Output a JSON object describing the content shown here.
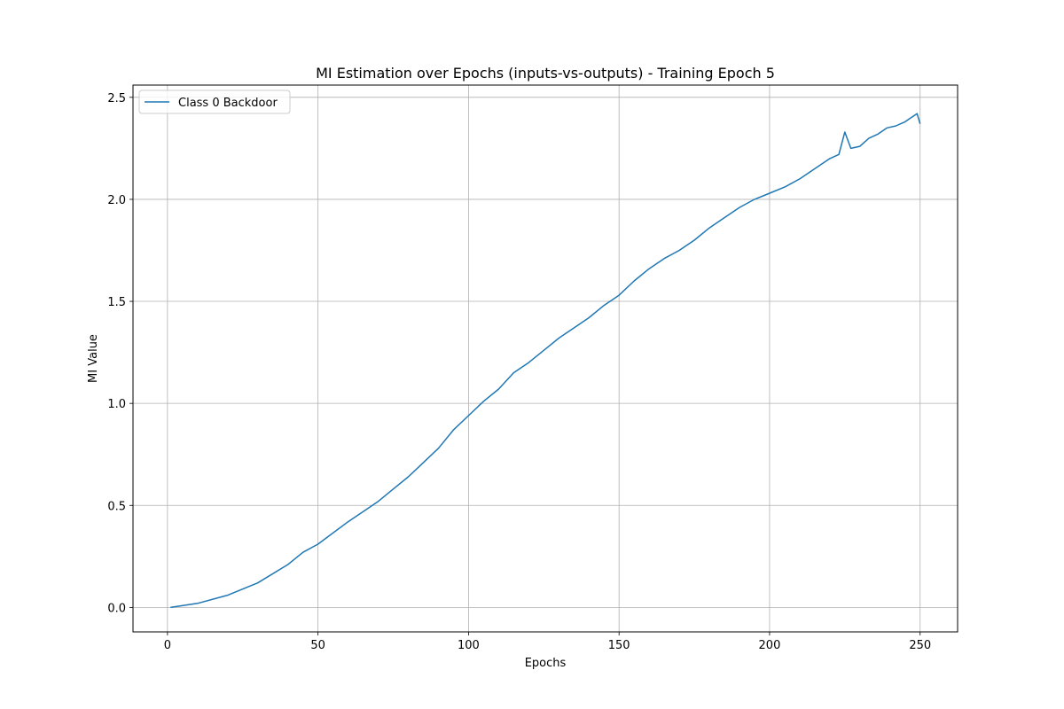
{
  "chart_data": {
    "type": "line",
    "title": "MI Estimation over Epochs (inputs-vs-outputs) - Training Epoch 5",
    "xlabel": "Epochs",
    "ylabel": "MI Value",
    "xlim": [
      -11.45,
      262.45
    ],
    "ylim": [
      -0.12,
      2.56
    ],
    "xticks": [
      0,
      50,
      100,
      150,
      200,
      250
    ],
    "xtick_labels": [
      "0",
      "50",
      "100",
      "150",
      "200",
      "250"
    ],
    "yticks": [
      0.0,
      0.5,
      1.0,
      1.5,
      2.0,
      2.5
    ],
    "ytick_labels": [
      "0.0",
      "0.5",
      "1.0",
      "1.5",
      "2.0",
      "2.5"
    ],
    "grid": true,
    "legend_position": "upper left",
    "series": [
      {
        "name": "Class 0 Backdoor",
        "color": "#1f77b4",
        "x": [
          1,
          10,
          20,
          30,
          40,
          45,
          50,
          60,
          65,
          70,
          75,
          80,
          85,
          90,
          95,
          100,
          105,
          110,
          115,
          120,
          125,
          130,
          132,
          135,
          140,
          145,
          150,
          155,
          160,
          165,
          170,
          175,
          180,
          185,
          190,
          195,
          200,
          205,
          210,
          215,
          220,
          223,
          225,
          227,
          230,
          233,
          236,
          239,
          242,
          245,
          247,
          249,
          250
        ],
        "y": [
          0.0,
          0.02,
          0.06,
          0.12,
          0.21,
          0.27,
          0.31,
          0.42,
          0.47,
          0.52,
          0.58,
          0.64,
          0.71,
          0.78,
          0.87,
          0.94,
          1.01,
          1.07,
          1.15,
          1.2,
          1.26,
          1.32,
          1.34,
          1.37,
          1.42,
          1.48,
          1.53,
          1.6,
          1.66,
          1.71,
          1.75,
          1.8,
          1.86,
          1.91,
          1.96,
          2.0,
          2.03,
          2.06,
          2.1,
          2.15,
          2.2,
          2.22,
          2.33,
          2.25,
          2.26,
          2.3,
          2.32,
          2.35,
          2.36,
          2.38,
          2.4,
          2.42,
          2.37
        ]
      }
    ]
  }
}
